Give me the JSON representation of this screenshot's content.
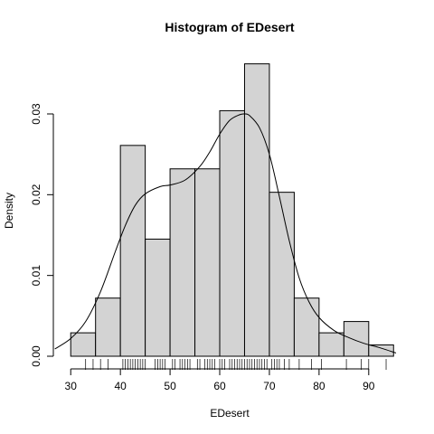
{
  "chart_data": {
    "type": "bar",
    "title": "Histogram of EDesert",
    "xlabel": "EDesert",
    "ylabel": "Density",
    "xlim": [
      26.5,
      97.5
    ],
    "ylim": [
      0,
      0.0375
    ],
    "bins": [
      {
        "x0": 30,
        "x1": 35,
        "density": 0.0029
      },
      {
        "x0": 35,
        "x1": 40,
        "density": 0.0072
      },
      {
        "x0": 40,
        "x1": 45,
        "density": 0.0261
      },
      {
        "x0": 45,
        "x1": 50,
        "density": 0.0145
      },
      {
        "x0": 50,
        "x1": 55,
        "density": 0.0232
      },
      {
        "x0": 55,
        "x1": 60,
        "density": 0.0232
      },
      {
        "x0": 60,
        "x1": 65,
        "density": 0.0304
      },
      {
        "x0": 65,
        "x1": 70,
        "density": 0.0362
      },
      {
        "x0": 70,
        "x1": 75,
        "density": 0.0203
      },
      {
        "x0": 75,
        "x1": 80,
        "density": 0.0072
      },
      {
        "x0": 80,
        "x1": 85,
        "density": 0.0029
      },
      {
        "x0": 85,
        "x1": 90,
        "density": 0.0043
      },
      {
        "x0": 90,
        "x1": 95,
        "density": 0.0014
      }
    ],
    "density_curve": {
      "x": [
        26.8,
        30,
        33,
        36,
        39,
        41,
        43,
        45,
        48,
        50,
        53,
        56,
        58,
        60,
        62,
        64,
        65,
        66,
        68,
        70,
        72,
        74,
        76,
        78,
        80,
        83,
        86,
        89,
        92,
        95.5
      ],
      "y": [
        0.0009,
        0.0022,
        0.0043,
        0.008,
        0.013,
        0.0162,
        0.0187,
        0.0201,
        0.021,
        0.0212,
        0.0218,
        0.0235,
        0.0253,
        0.0275,
        0.0292,
        0.0299,
        0.03,
        0.0298,
        0.0283,
        0.025,
        0.0198,
        0.0143,
        0.0097,
        0.0067,
        0.0048,
        0.0032,
        0.0023,
        0.0016,
        0.0011,
        0.0004
      ]
    },
    "rug": [
      33,
      34.5,
      36,
      37.5,
      40.5,
      41,
      41.5,
      42,
      42.5,
      43,
      43.5,
      44,
      44.5,
      45,
      47,
      47.5,
      48,
      48.5,
      49,
      50.5,
      51,
      52,
      52.5,
      53,
      53.5,
      54,
      55.5,
      56,
      57,
      57.5,
      58,
      58.5,
      59,
      60,
      60.5,
      61,
      62,
      62.5,
      63,
      63.5,
      64,
      64.5,
      65,
      65.5,
      66,
      66.5,
      67,
      67.5,
      68,
      68.5,
      69,
      69.5,
      70.5,
      71,
      71.5,
      72,
      73,
      74,
      76,
      78.5,
      80.5,
      85.5,
      88.5,
      90,
      93.5
    ],
    "xticks": [
      30,
      40,
      50,
      60,
      70,
      80,
      90
    ],
    "xtick_labels": [
      "30",
      "40",
      "50",
      "60",
      "70",
      "80",
      "90"
    ],
    "yticks": [
      0,
      0.01,
      0.02,
      0.03
    ],
    "ytick_labels": [
      "0.00",
      "0.01",
      "0.02",
      "0.03"
    ],
    "legend": false,
    "grid": false,
    "colors": {
      "bar_fill": "#d3d3d3",
      "stroke": "#000000"
    }
  }
}
